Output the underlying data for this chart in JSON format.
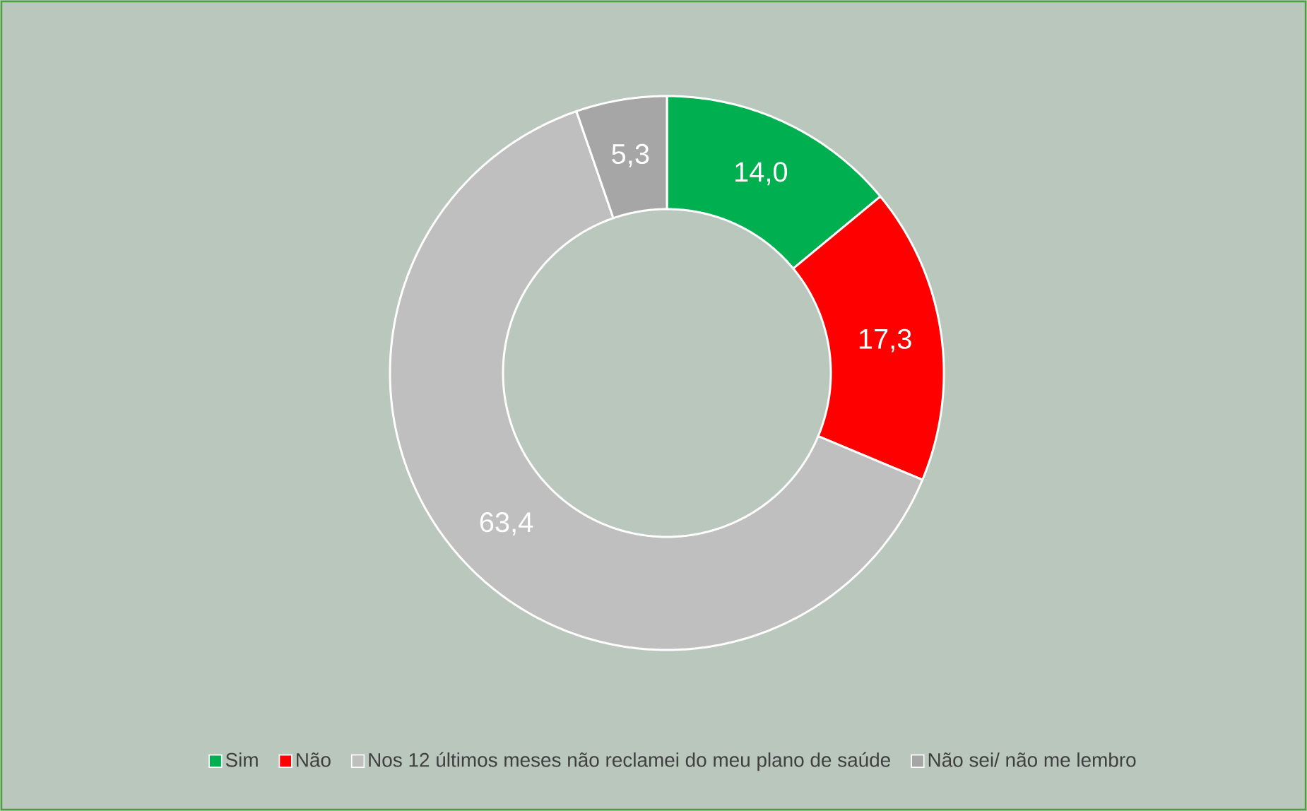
{
  "chart_data": {
    "type": "donut",
    "categories": [
      "Sim",
      "Não",
      "Nos 12 últimos meses não reclamei do meu plano de saúde",
      "Não sei/ não me lembro"
    ],
    "values": [
      14.0,
      17.3,
      63.4,
      5.3
    ],
    "colors": [
      "#00b050",
      "#ff0000",
      "#bfbfbf",
      "#a6a6a6"
    ],
    "value_labels": [
      "14,0",
      "17,3",
      "63,4",
      "5,3"
    ],
    "legend": "bottom"
  }
}
